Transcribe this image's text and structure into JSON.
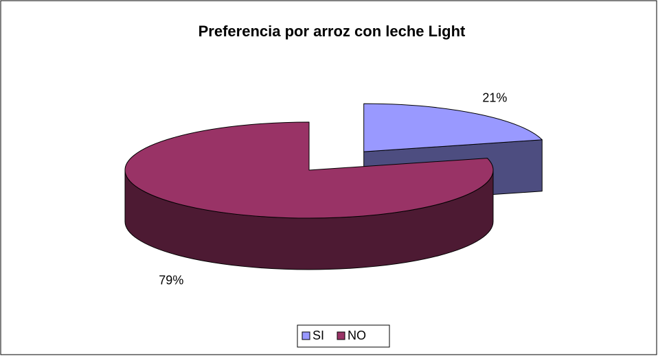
{
  "chart_data": {
    "type": "pie",
    "title": "Preferencia por arroz con leche Light",
    "categories": [
      "SI",
      "NO"
    ],
    "values": [
      21,
      79
    ],
    "value_labels": [
      "21%",
      "79%"
    ],
    "colors": [
      "#9999FF",
      "#993366"
    ],
    "legend": "bottom"
  }
}
